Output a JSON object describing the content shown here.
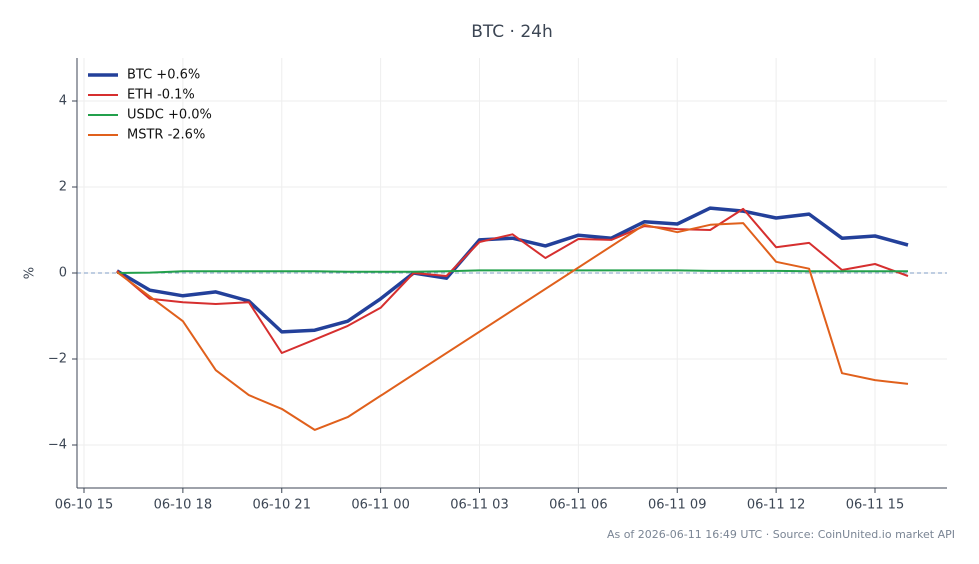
{
  "chart_data": {
    "type": "line",
    "title": "BTC · 24h",
    "y_label": "%",
    "footer": "As of 2026-06-11 16:49 UTC · Source: CoinUnited.io market API",
    "legend": "upper left",
    "grid": true,
    "zero_line": true,
    "x": [
      "06-10 16",
      "06-10 17",
      "06-10 18",
      "06-10 19",
      "06-10 20",
      "06-10 21",
      "06-10 22",
      "06-10 23",
      "06-11 00",
      "06-11 01",
      "06-11 02",
      "06-11 03",
      "06-11 04",
      "06-11 05",
      "06-11 06",
      "06-11 07",
      "06-11 08",
      "06-11 09",
      "06-11 10",
      "06-11 11",
      "06-11 12",
      "06-11 13",
      "06-11 14",
      "06-11 15",
      "06-11 16"
    ],
    "xticks": [
      "06-10 15",
      "06-10 18",
      "06-10 21",
      "06-11 00",
      "06-11 03",
      "06-11 06",
      "06-11 09",
      "06-11 12",
      "06-11 15"
    ],
    "ylim": [
      -5,
      5
    ],
    "yticks": [
      {
        "value": -4,
        "label": "−4"
      },
      {
        "value": -2,
        "label": "−2"
      },
      0,
      2,
      4
    ],
    "series": [
      {
        "name": "BTC +0.6%",
        "color": "#23409a",
        "width": 3.5,
        "values": [
          0.05,
          -0.4,
          -0.53,
          -0.44,
          -0.65,
          -1.37,
          -1.33,
          -1.12,
          -0.6,
          0.0,
          -0.12,
          0.77,
          0.81,
          0.63,
          0.88,
          0.81,
          1.19,
          1.14,
          1.51,
          1.44,
          1.28,
          1.37,
          0.81,
          0.86,
          0.65
        ]
      },
      {
        "name": "ETH -0.1%",
        "color": "#d62f2f",
        "width": 2,
        "values": [
          0.05,
          -0.6,
          -0.68,
          -0.72,
          -0.68,
          -1.86,
          -1.55,
          -1.23,
          -0.81,
          0.0,
          -0.07,
          0.72,
          0.9,
          0.35,
          0.79,
          0.77,
          1.09,
          1.02,
          1.0,
          1.49,
          0.6,
          0.7,
          0.07,
          0.21,
          -0.07
        ]
      },
      {
        "name": "USDC +0.0%",
        "color": "#23a04c",
        "width": 2,
        "values": [
          0.0,
          0.01,
          0.04,
          0.04,
          0.04,
          0.04,
          0.04,
          0.03,
          0.03,
          0.03,
          0.04,
          0.06,
          0.06,
          0.06,
          0.06,
          0.06,
          0.06,
          0.06,
          0.05,
          0.05,
          0.05,
          0.04,
          0.04,
          0.04,
          0.04
        ]
      },
      {
        "name": "MSTR -2.6%",
        "color": "#e0601c",
        "width": 2,
        "x": [
          "06-10 16",
          "06-10 17",
          "06-10 18",
          "06-10 19",
          "06-10 20",
          "06-10 21",
          "06-10 22",
          "06-10 23",
          "06-11 08",
          "06-11 09",
          "06-11 10",
          "06-11 11",
          "06-11 12",
          "06-11 13",
          "06-11 14",
          "06-11 15",
          "06-11 16"
        ],
        "values": [
          0.02,
          -0.55,
          -1.12,
          -2.26,
          -2.84,
          -3.16,
          -3.65,
          -3.35,
          1.12,
          0.95,
          1.12,
          1.16,
          0.26,
          0.1,
          -2.33,
          -2.49,
          -2.58
        ]
      }
    ]
  }
}
